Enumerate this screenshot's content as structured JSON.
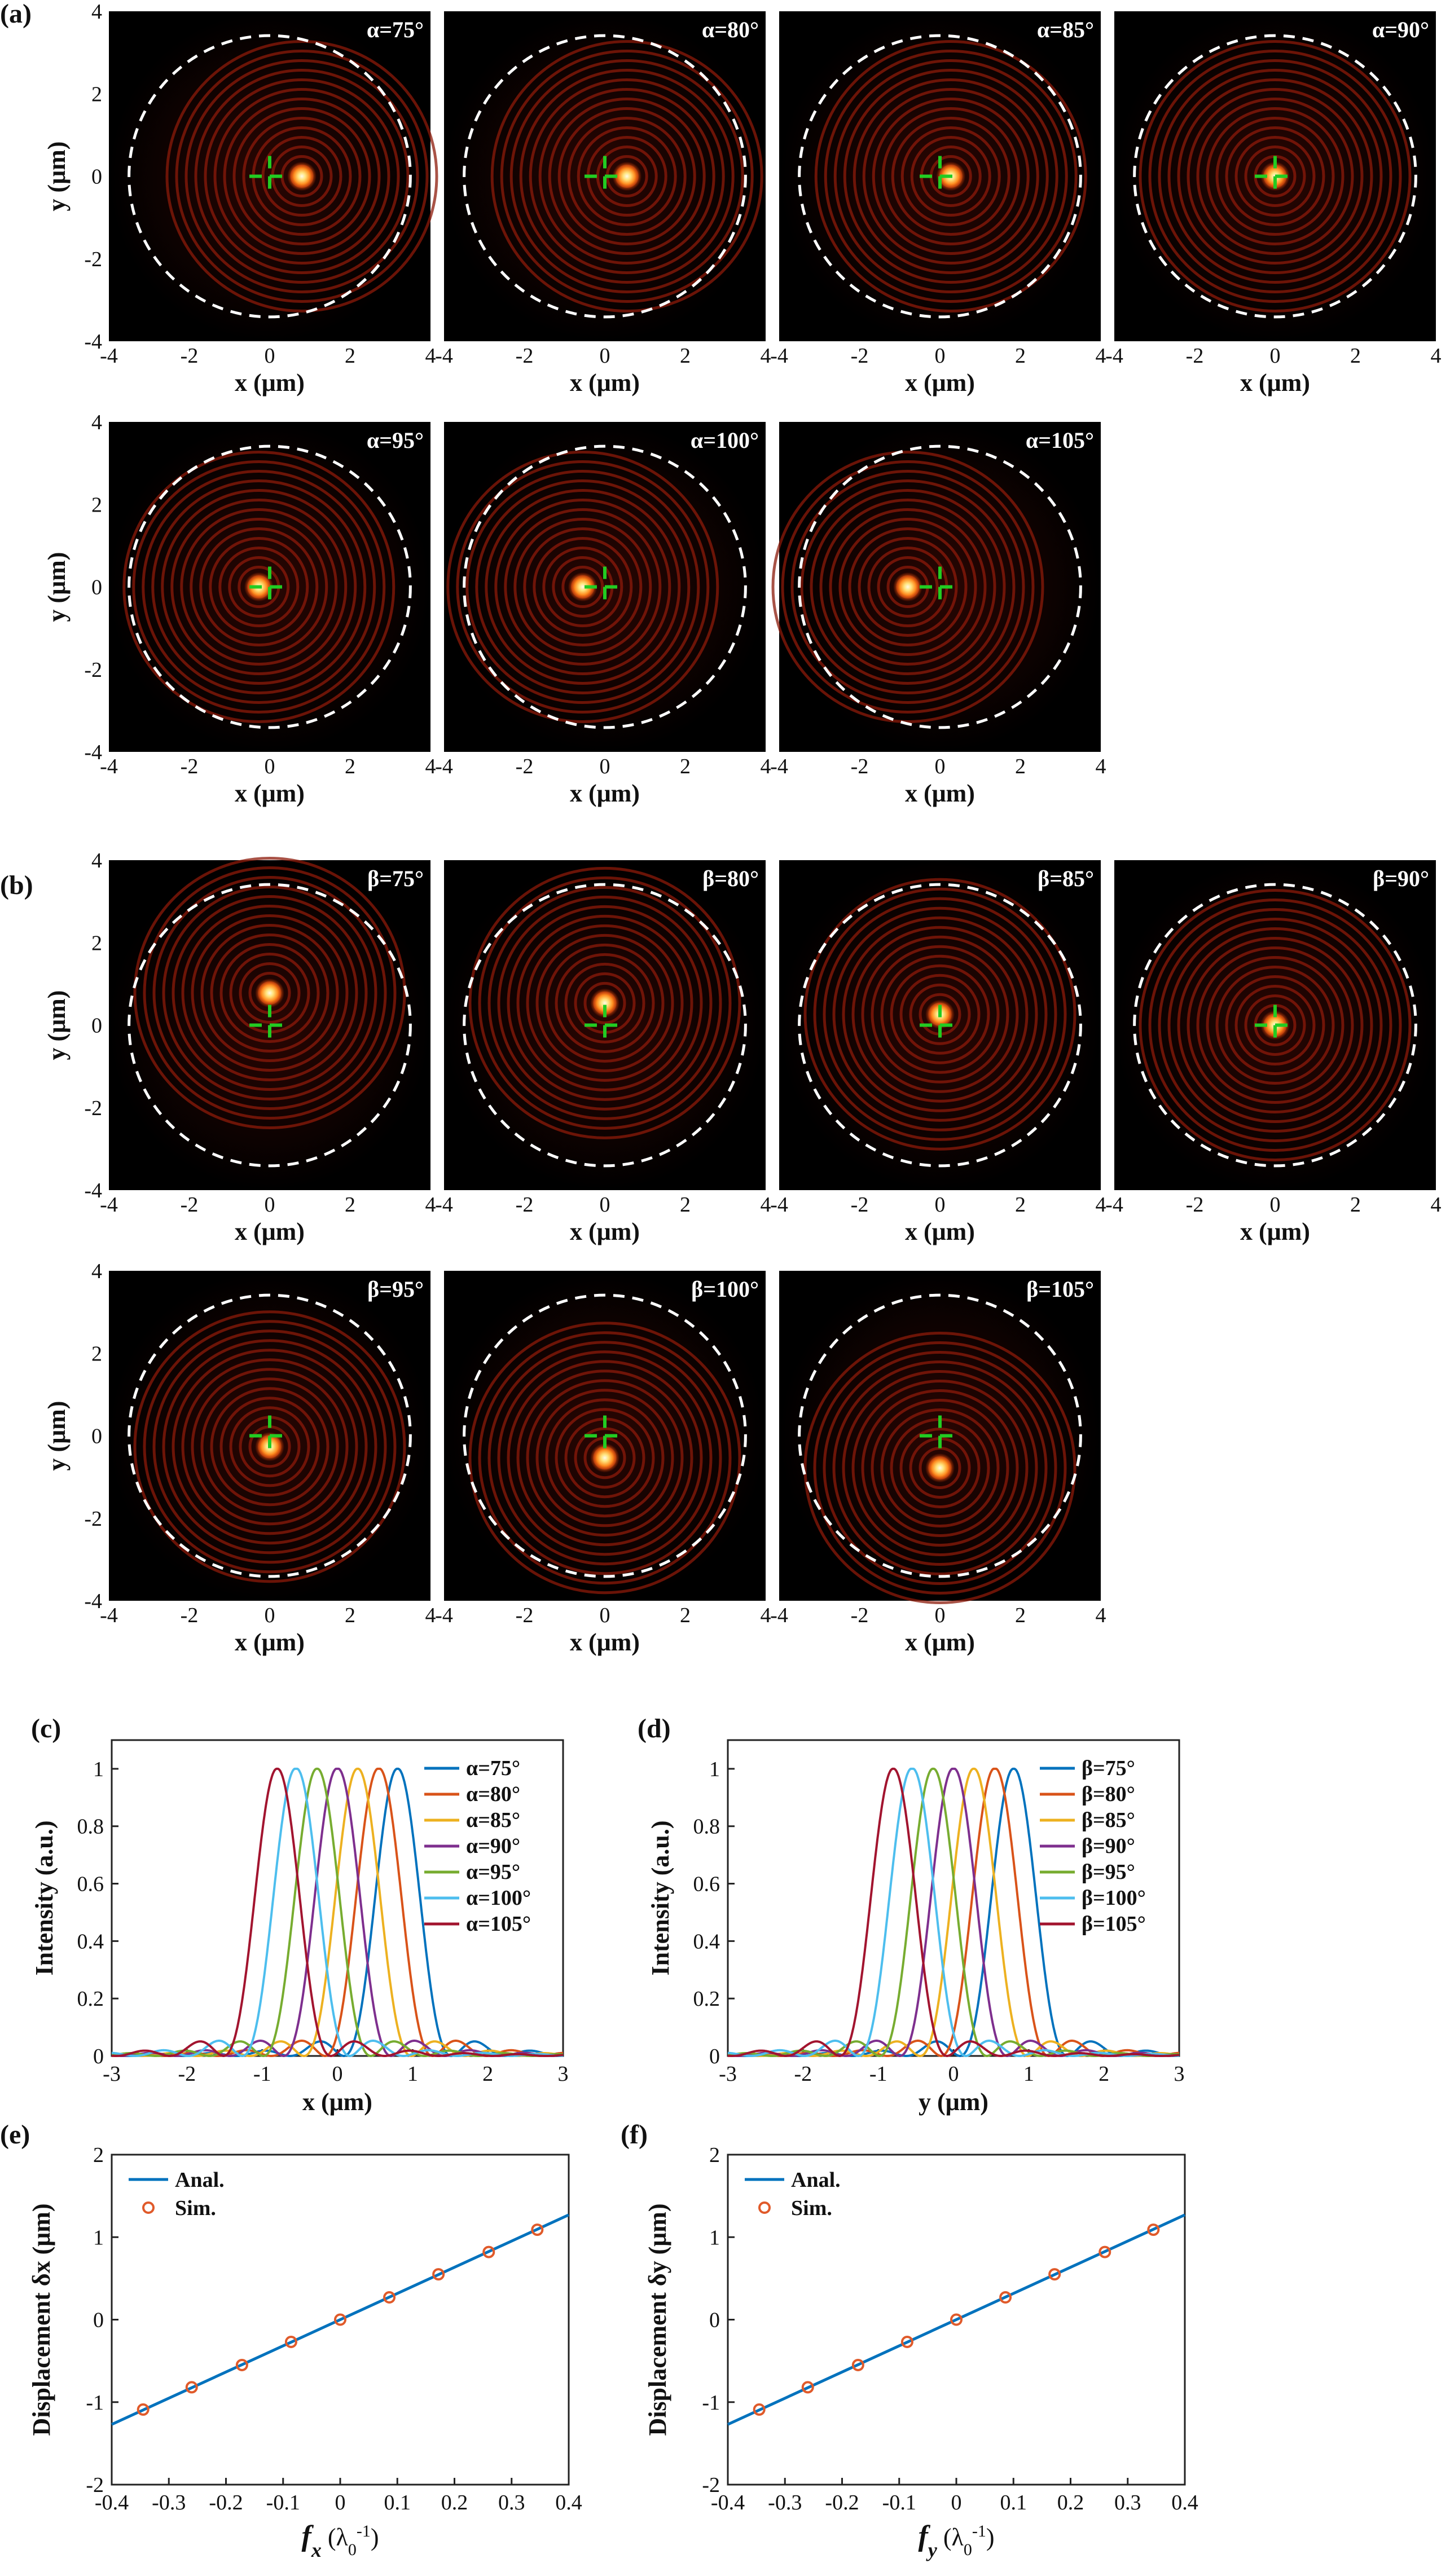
{
  "figure": {
    "panel_labels": {
      "a": "(a)",
      "b": "(b)",
      "c": "(c)",
      "d": "(d)",
      "e": "(e)",
      "f": "(f)"
    },
    "colors": {
      "dashed_circle": "#ffffff",
      "crosshair": "#22cc22",
      "background": "#000000",
      "ring": "#8c1a0a",
      "spot_core": "#fff6c8",
      "spot_glow": "#ff9a2a",
      "line_fit": "#0072bd",
      "marker_sim": "#e05a2a"
    }
  },
  "chart_data": [
    {
      "id": "a",
      "type": "heatmap",
      "title": "(a)",
      "xlabel": "x (μm)",
      "ylabel": "y (μm)",
      "xlim": [
        -4,
        4
      ],
      "ylim": [
        -4,
        4
      ],
      "xticks": [
        -4,
        -2,
        0,
        2,
        4
      ],
      "yticks": [
        -4,
        -2,
        0,
        2,
        4
      ],
      "circle_radius_um": 3.5,
      "panels": [
        {
          "label": "α=75°",
          "spot": [
            0.8,
            0
          ]
        },
        {
          "label": "α=80°",
          "spot": [
            0.55,
            0
          ]
        },
        {
          "label": "α=85°",
          "spot": [
            0.27,
            0
          ]
        },
        {
          "label": "α=90°",
          "spot": [
            0,
            0
          ]
        },
        {
          "label": "α=95°",
          "spot": [
            -0.27,
            0
          ]
        },
        {
          "label": "α=100°",
          "spot": [
            -0.55,
            0
          ]
        },
        {
          "label": "α=105°",
          "spot": [
            -0.8,
            0
          ]
        }
      ]
    },
    {
      "id": "b",
      "type": "heatmap",
      "title": "(b)",
      "xlabel": "x (μm)",
      "ylabel": "y (μm)",
      "xlim": [
        -4,
        4
      ],
      "ylim": [
        -4,
        4
      ],
      "xticks": [
        -4,
        -2,
        0,
        2,
        4
      ],
      "yticks": [
        -4,
        -2,
        0,
        2,
        4
      ],
      "circle_radius_um": 3.5,
      "panels": [
        {
          "label": "β=75°",
          "spot": [
            0,
            0.8
          ]
        },
        {
          "label": "β=80°",
          "spot": [
            0,
            0.55
          ]
        },
        {
          "label": "β=85°",
          "spot": [
            0,
            0.27
          ]
        },
        {
          "label": "β=90°",
          "spot": [
            0,
            0
          ]
        },
        {
          "label": "β=95°",
          "spot": [
            0,
            -0.27
          ]
        },
        {
          "label": "β=100°",
          "spot": [
            0,
            -0.55
          ]
        },
        {
          "label": "β=105°",
          "spot": [
            0,
            -0.8
          ]
        }
      ]
    },
    {
      "id": "c",
      "type": "line",
      "title": "(c)",
      "xlabel": "x (μm)",
      "ylabel": "Intensity (a.u.)",
      "xlim": [
        -3,
        3
      ],
      "ylim": [
        0,
        1.1
      ],
      "xticks": [
        -3,
        -2,
        -1,
        0,
        1,
        2,
        3
      ],
      "yticks": [
        0,
        0.2,
        0.4,
        0.6,
        0.8,
        1
      ],
      "series": [
        {
          "name": "α=75°",
          "color": "#0072bd",
          "peak": 0.8
        },
        {
          "name": "α=80°",
          "color": "#d95319",
          "peak": 0.55
        },
        {
          "name": "α=85°",
          "color": "#edb120",
          "peak": 0.27
        },
        {
          "name": "α=90°",
          "color": "#7e2f8e",
          "peak": 0
        },
        {
          "name": "α=95°",
          "color": "#77ac30",
          "peak": -0.27
        },
        {
          "name": "α=100°",
          "color": "#4dbeee",
          "peak": -0.55
        },
        {
          "name": "α=105°",
          "color": "#a2142f",
          "peak": -0.8
        }
      ]
    },
    {
      "id": "d",
      "type": "line",
      "title": "(d)",
      "xlabel": "y (μm)",
      "ylabel": "Intensity (a.u.)",
      "xlim": [
        -3,
        3
      ],
      "ylim": [
        0,
        1.1
      ],
      "xticks": [
        -3,
        -2,
        -1,
        0,
        1,
        2,
        3
      ],
      "yticks": [
        0,
        0.2,
        0.4,
        0.6,
        0.8,
        1
      ],
      "series": [
        {
          "name": "β=75°",
          "color": "#0072bd",
          "peak": 0.8
        },
        {
          "name": "β=80°",
          "color": "#d95319",
          "peak": 0.55
        },
        {
          "name": "β=85°",
          "color": "#edb120",
          "peak": 0.27
        },
        {
          "name": "β=90°",
          "color": "#7e2f8e",
          "peak": 0
        },
        {
          "name": "β=95°",
          "color": "#77ac30",
          "peak": -0.27
        },
        {
          "name": "β=100°",
          "color": "#4dbeee",
          "peak": -0.55
        },
        {
          "name": "β=105°",
          "color": "#a2142f",
          "peak": -0.8
        }
      ]
    },
    {
      "id": "e",
      "type": "line",
      "title": "(e)",
      "xlabel_main": "f",
      "xlabel_sub": "x",
      "xlabel_unit": "(λ",
      "xlabel_unit_sub": "0",
      "xlabel_unit_sup": "-1",
      "xlabel_unit_close": ")",
      "ylabel": "Displacement δx (μm)",
      "xlim": [
        -0.4,
        0.4
      ],
      "ylim": [
        -2,
        2
      ],
      "xticks": [
        -0.4,
        -0.3,
        -0.2,
        -0.1,
        0,
        0.1,
        0.2,
        0.3,
        0.4
      ],
      "yticks": [
        -2,
        -1,
        0,
        1,
        2
      ],
      "legend": [
        "Anal.",
        "Sim."
      ],
      "anal_line": {
        "x": [
          -0.4,
          0.4
        ],
        "y": [
          -1.27,
          1.27
        ]
      },
      "sim_points": {
        "x": [
          -0.345,
          -0.26,
          -0.172,
          -0.086,
          0,
          0.086,
          0.172,
          0.26,
          0.345
        ],
        "y": [
          -1.09,
          -0.82,
          -0.55,
          -0.27,
          0,
          0.27,
          0.55,
          0.82,
          1.09
        ]
      }
    },
    {
      "id": "f",
      "type": "line",
      "title": "(f)",
      "xlabel_main": "f",
      "xlabel_sub": "y",
      "xlabel_unit": "(λ",
      "xlabel_unit_sub": "0",
      "xlabel_unit_sup": "-1",
      "xlabel_unit_close": ")",
      "ylabel": "Displacement δy (μm)",
      "xlim": [
        -0.4,
        0.4
      ],
      "ylim": [
        -2,
        2
      ],
      "xticks": [
        -0.4,
        -0.3,
        -0.2,
        -0.1,
        0,
        0.1,
        0.2,
        0.3,
        0.4
      ],
      "yticks": [
        -2,
        -1,
        0,
        1,
        2
      ],
      "legend": [
        "Anal.",
        "Sim."
      ],
      "anal_line": {
        "x": [
          -0.4,
          0.4
        ],
        "y": [
          -1.27,
          1.27
        ]
      },
      "sim_points": {
        "x": [
          -0.345,
          -0.26,
          -0.172,
          -0.086,
          0,
          0.086,
          0.172,
          0.26,
          0.345
        ],
        "y": [
          -1.09,
          -0.82,
          -0.55,
          -0.27,
          0,
          0.27,
          0.55,
          0.82,
          1.09
        ]
      }
    }
  ]
}
